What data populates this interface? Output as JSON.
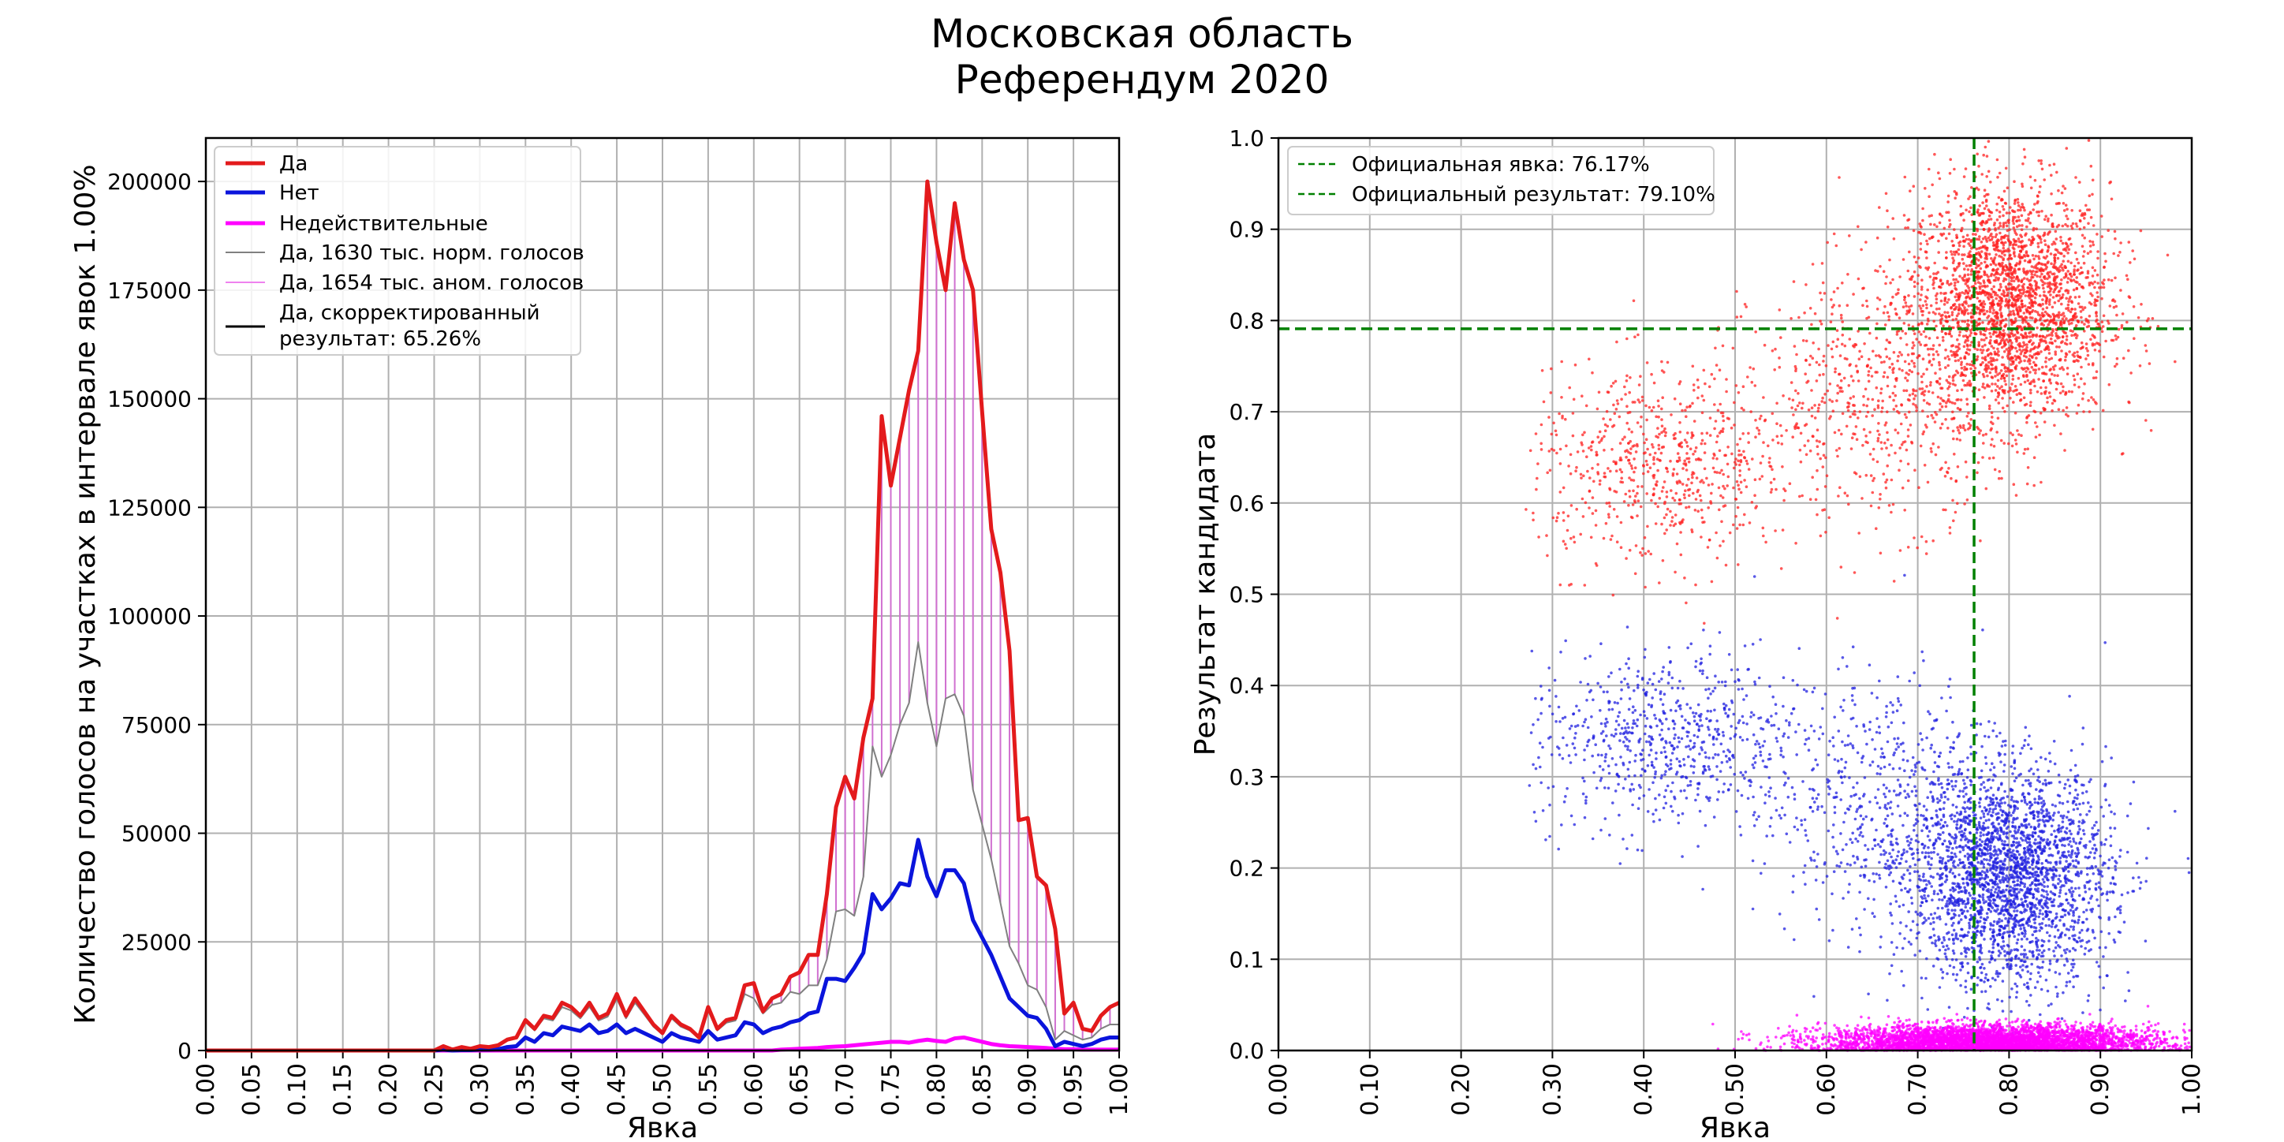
{
  "figure": {
    "title_line1": "Московская область",
    "title_line2": "Референдум 2020"
  },
  "chart_data": [
    {
      "type": "line",
      "xlabel": "Явка",
      "ylabel": "Количество голосов на участках в интервале явок 1.00%",
      "xlim": [
        0,
        1
      ],
      "ylim": [
        0,
        210000
      ],
      "xticks": [
        "0.00",
        "0.05",
        "0.10",
        "0.15",
        "0.20",
        "0.25",
        "0.30",
        "0.35",
        "0.40",
        "0.45",
        "0.50",
        "0.55",
        "0.60",
        "0.65",
        "0.70",
        "0.75",
        "0.80",
        "0.85",
        "0.90",
        "0.95",
        "1.00"
      ],
      "yticks": [
        "0",
        "25000",
        "50000",
        "75000",
        "100000",
        "125000",
        "150000",
        "175000",
        "200000"
      ],
      "grid": true,
      "legend_position": "top-left",
      "legend": [
        {
          "label": "Да",
          "color": "#e31a1c",
          "width": 5
        },
        {
          "label": "Нет",
          "color": "#0a14dc",
          "width": 5
        },
        {
          "label": "Недействительные",
          "color": "#ff00ff",
          "width": 5
        },
        {
          "label": "Да, 1630 тыс. норм. голосов",
          "color": "#808080",
          "width": 2
        },
        {
          "label": "Да, 1654 тыс. аном. голосов",
          "color": "#ee82ee",
          "width": 2
        },
        {
          "label": "Да, скорректированный",
          "label2": "результат: 65.26%",
          "color": "#000000",
          "width": 3
        }
      ],
      "x": [
        0.25,
        0.26,
        0.27,
        0.28,
        0.29,
        0.3,
        0.31,
        0.32,
        0.33,
        0.34,
        0.35,
        0.36,
        0.37,
        0.38,
        0.39,
        0.4,
        0.41,
        0.42,
        0.43,
        0.44,
        0.45,
        0.46,
        0.47,
        0.48,
        0.49,
        0.5,
        0.51,
        0.52,
        0.53,
        0.54,
        0.55,
        0.56,
        0.57,
        0.58,
        0.59,
        0.6,
        0.61,
        0.62,
        0.63,
        0.64,
        0.65,
        0.66,
        0.67,
        0.68,
        0.69,
        0.7,
        0.71,
        0.72,
        0.73,
        0.74,
        0.75,
        0.76,
        0.77,
        0.78,
        0.79,
        0.8,
        0.81,
        0.82,
        0.83,
        0.84,
        0.85,
        0.86,
        0.87,
        0.88,
        0.89,
        0.9,
        0.91,
        0.92,
        0.93,
        0.94,
        0.95,
        0.96,
        0.97,
        0.98,
        0.99,
        1.0
      ],
      "series": [
        {
          "name": "Да",
          "color": "#e31a1c",
          "width": 5,
          "values": [
            0,
            1000,
            200,
            800,
            400,
            1000,
            800,
            1200,
            2500,
            3000,
            7000,
            5000,
            8000,
            7500,
            11000,
            10000,
            8000,
            11000,
            7500,
            8500,
            13000,
            8000,
            12000,
            9000,
            6000,
            4000,
            8000,
            6000,
            5000,
            3000,
            10000,
            5000,
            7000,
            7500,
            15000,
            15500,
            9000,
            12000,
            13000,
            17000,
            18000,
            22000,
            22000,
            36000,
            56000,
            63000,
            58000,
            72000,
            81000,
            146000,
            130000,
            141000,
            152000,
            161000,
            200000,
            186000,
            175000,
            195000,
            182000,
            175000,
            147000,
            120000,
            110000,
            92000,
            53000,
            53500,
            40000,
            38000,
            28000,
            8500,
            11000,
            5000,
            4500,
            8000,
            10000,
            11000
          ]
        },
        {
          "name": "Нет",
          "color": "#0a14dc",
          "width": 5,
          "values": [
            0,
            200,
            0,
            100,
            100,
            200,
            200,
            300,
            800,
            1000,
            3000,
            2000,
            4000,
            3500,
            5500,
            5000,
            4500,
            6000,
            4000,
            4500,
            6000,
            4000,
            5000,
            4000,
            3000,
            2000,
            4000,
            3000,
            2500,
            2000,
            4500,
            2500,
            3000,
            3500,
            6500,
            6000,
            4000,
            5000,
            5500,
            6500,
            7000,
            8500,
            9000,
            16500,
            16500,
            16000,
            19000,
            22500,
            36000,
            32500,
            35000,
            38500,
            38000,
            48500,
            40000,
            35500,
            41500,
            41500,
            38500,
            30000,
            26000,
            22000,
            17000,
            12000,
            10000,
            8000,
            7500,
            5000,
            1000,
            2000,
            1500,
            1000,
            1500,
            2500,
            3000,
            3000
          ]
        },
        {
          "name": "Недействительные",
          "color": "#ff00ff",
          "width": 5,
          "values": [
            0,
            0,
            0,
            0,
            0,
            0,
            0,
            0,
            0,
            0,
            0,
            0,
            0,
            0,
            0,
            0,
            0,
            0,
            0,
            0,
            0,
            0,
            0,
            0,
            0,
            0,
            0,
            0,
            0,
            0,
            0,
            0,
            0,
            0,
            0,
            0,
            0,
            0,
            200,
            300,
            400,
            500,
            600,
            800,
            900,
            1000,
            1200,
            1400,
            1600,
            1800,
            2000,
            2000,
            1800,
            2200,
            2500,
            2200,
            2000,
            2800,
            3000,
            2500,
            2000,
            1500,
            1200,
            1000,
            900,
            800,
            700,
            600,
            400,
            300,
            300,
            200,
            200,
            200,
            200,
            200
          ]
        },
        {
          "name": "Да, 1630 тыс. норм. голосов",
          "color": "#808080",
          "width": 2,
          "values": [
            0,
            900,
            200,
            700,
            400,
            900,
            700,
            1100,
            2300,
            2800,
            6500,
            4600,
            7400,
            6900,
            10000,
            9200,
            7400,
            10100,
            6900,
            7800,
            11900,
            7400,
            11000,
            8300,
            5500,
            3700,
            7400,
            5500,
            4600,
            2800,
            9200,
            4600,
            6400,
            6900,
            13000,
            12000,
            8500,
            10500,
            11000,
            13500,
            13000,
            15000,
            15000,
            21000,
            32000,
            32500,
            31000,
            40000,
            70000,
            63000,
            68000,
            75000,
            80000,
            94000,
            80000,
            70000,
            81000,
            82000,
            77000,
            60000,
            52000,
            44000,
            34000,
            24000,
            20000,
            15000,
            14000,
            10000,
            2500,
            4500,
            3500,
            2500,
            3000,
            5000,
            6000,
            6000
          ]
        }
      ]
    },
    {
      "type": "scatter",
      "xlabel": "Явка",
      "ylabel": "Результат кандидата",
      "xlim": [
        0,
        1
      ],
      "ylim": [
        0,
        1
      ],
      "xticks": [
        "0.00",
        "0.10",
        "0.20",
        "0.30",
        "0.40",
        "0.50",
        "0.60",
        "0.70",
        "0.80",
        "0.90",
        "1.00"
      ],
      "yticks": [
        "0.0",
        "0.1",
        "0.2",
        "0.3",
        "0.4",
        "0.5",
        "0.6",
        "0.7",
        "0.8",
        "0.9",
        "1.0"
      ],
      "grid": true,
      "legend_position": "top-left",
      "official_turnout": 0.7617,
      "official_result": 0.791,
      "legend": [
        {
          "label": "Официальная явка: 76.17%",
          "color": "#008000"
        },
        {
          "label": "Официальный результат: 79.10%",
          "color": "#008000"
        }
      ],
      "clusters": [
        {
          "color": "#ff2020",
          "n": 2600,
          "cx": 0.8,
          "cy": 0.82,
          "sx": 0.055,
          "sy": 0.065
        },
        {
          "color": "#ff2020",
          "n": 700,
          "cx": 0.42,
          "cy": 0.64,
          "sx": 0.075,
          "sy": 0.055
        },
        {
          "color": "#ff2020",
          "n": 600,
          "cx": 0.66,
          "cy": 0.72,
          "sx": 0.07,
          "sy": 0.07
        },
        {
          "color": "#2020e0",
          "n": 2600,
          "cx": 0.8,
          "cy": 0.19,
          "sx": 0.055,
          "sy": 0.06
        },
        {
          "color": "#2020e0",
          "n": 700,
          "cx": 0.42,
          "cy": 0.34,
          "sx": 0.075,
          "sy": 0.05
        },
        {
          "color": "#2020e0",
          "n": 600,
          "cx": 0.66,
          "cy": 0.27,
          "sx": 0.07,
          "sy": 0.07
        },
        {
          "color": "#ff00ff",
          "n": 4500,
          "cx": 0.78,
          "cy": 0.01,
          "sx": 0.09,
          "sy": 0.009
        }
      ]
    }
  ]
}
